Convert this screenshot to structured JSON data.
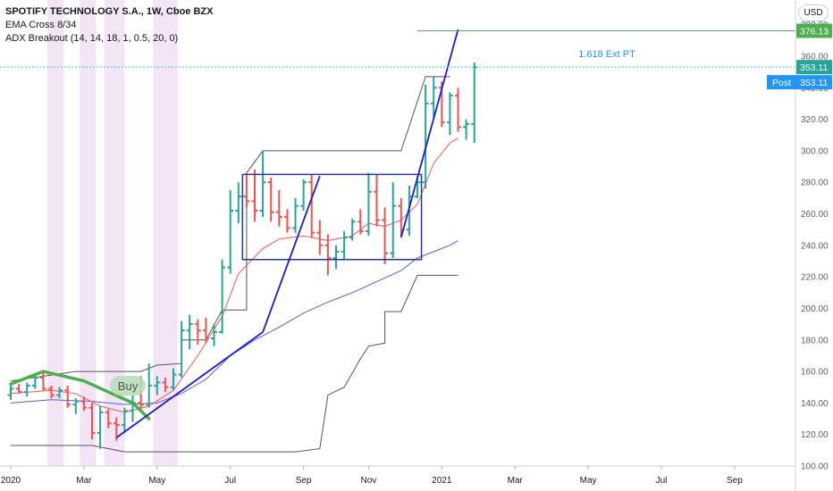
{
  "header": {
    "title": "SPOTIFY TECHNOLOGY S.A., 1W, Cboe BZX",
    "indicator1": "EMA Cross 8/34",
    "indicator2": "ADX Breakout (14, 14, 18, 1, 0.5, 20, 0)",
    "currency": "USD"
  },
  "annotations": {
    "buy": "Buy",
    "target": "1.618 Ext PT",
    "post_label": "Post"
  },
  "price_tags": {
    "target": "376.13",
    "last": "353.11",
    "post": "353.11"
  },
  "colors": {
    "up": "#26a69a",
    "down": "#ef5350",
    "ema_fast": "#ef5350",
    "ema_slow": "#5b5bd6",
    "trendline": "#1a1adb",
    "box": "#1f3a8a",
    "target_line": "#4caf50",
    "last_price": "#26c6da",
    "highlight": "#f3e5f5"
  },
  "chart_data": {
    "type": "ohlc",
    "timeframe": "1W",
    "ylim": [
      100,
      390
    ],
    "y_ticks": [
      100,
      120,
      140,
      160,
      180,
      200,
      220,
      240,
      260,
      280,
      300,
      320,
      340,
      360,
      380
    ],
    "x_ticks": [
      "2020",
      "Mar",
      "May",
      "Jul",
      "Sep",
      "Nov",
      "2021",
      "Mar",
      "May",
      "Jul",
      "Sep"
    ],
    "x_tick_week": [
      0,
      9,
      18,
      27,
      36,
      44,
      53,
      62,
      71,
      80,
      89
    ],
    "grid": false,
    "candles": [
      {
        "o": 145,
        "h": 151,
        "l": 142,
        "c": 149
      },
      {
        "o": 149,
        "h": 152,
        "l": 146,
        "c": 147
      },
      {
        "o": 147,
        "h": 153,
        "l": 144,
        "c": 151
      },
      {
        "o": 151,
        "h": 158,
        "l": 149,
        "c": 156
      },
      {
        "o": 156,
        "h": 160,
        "l": 148,
        "c": 149
      },
      {
        "o": 149,
        "h": 151,
        "l": 143,
        "c": 145
      },
      {
        "o": 145,
        "h": 150,
        "l": 143,
        "c": 148
      },
      {
        "o": 148,
        "h": 151,
        "l": 137,
        "c": 139
      },
      {
        "o": 139,
        "h": 143,
        "l": 133,
        "c": 141
      },
      {
        "o": 141,
        "h": 144,
        "l": 135,
        "c": 137
      },
      {
        "o": 137,
        "h": 140,
        "l": 117,
        "c": 121
      },
      {
        "o": 121,
        "h": 138,
        "l": 111,
        "c": 134
      },
      {
        "o": 134,
        "h": 136,
        "l": 124,
        "c": 127
      },
      {
        "o": 127,
        "h": 131,
        "l": 116,
        "c": 126
      },
      {
        "o": 126,
        "h": 137,
        "l": 121,
        "c": 135
      },
      {
        "o": 135,
        "h": 145,
        "l": 128,
        "c": 140
      },
      {
        "o": 140,
        "h": 157,
        "l": 136,
        "c": 139
      },
      {
        "o": 139,
        "h": 165,
        "l": 137,
        "c": 151
      },
      {
        "o": 151,
        "h": 157,
        "l": 145,
        "c": 153
      },
      {
        "o": 153,
        "h": 156,
        "l": 147,
        "c": 150
      },
      {
        "o": 150,
        "h": 162,
        "l": 148,
        "c": 158
      },
      {
        "o": 158,
        "h": 192,
        "l": 156,
        "c": 186
      },
      {
        "o": 186,
        "h": 196,
        "l": 174,
        "c": 190
      },
      {
        "o": 190,
        "h": 193,
        "l": 177,
        "c": 186
      },
      {
        "o": 186,
        "h": 194,
        "l": 178,
        "c": 181
      },
      {
        "o": 181,
        "h": 190,
        "l": 176,
        "c": 185
      },
      {
        "o": 185,
        "h": 231,
        "l": 184,
        "c": 226
      },
      {
        "o": 226,
        "h": 275,
        "l": 222,
        "c": 262
      },
      {
        "o": 262,
        "h": 280,
        "l": 254,
        "c": 271
      },
      {
        "o": 271,
        "h": 286,
        "l": 264,
        "c": 268
      },
      {
        "o": 268,
        "h": 288,
        "l": 255,
        "c": 262
      },
      {
        "o": 262,
        "h": 300,
        "l": 258,
        "c": 280
      },
      {
        "o": 280,
        "h": 283,
        "l": 255,
        "c": 261
      },
      {
        "o": 261,
        "h": 275,
        "l": 252,
        "c": 258
      },
      {
        "o": 258,
        "h": 263,
        "l": 248,
        "c": 251
      },
      {
        "o": 251,
        "h": 270,
        "l": 248,
        "c": 265
      },
      {
        "o": 265,
        "h": 282,
        "l": 262,
        "c": 280
      },
      {
        "o": 280,
        "h": 285,
        "l": 245,
        "c": 248
      },
      {
        "o": 248,
        "h": 256,
        "l": 234,
        "c": 240
      },
      {
        "o": 240,
        "h": 247,
        "l": 221,
        "c": 232
      },
      {
        "o": 232,
        "h": 240,
        "l": 225,
        "c": 236
      },
      {
        "o": 236,
        "h": 249,
        "l": 231,
        "c": 245
      },
      {
        "o": 245,
        "h": 257,
        "l": 243,
        "c": 255
      },
      {
        "o": 255,
        "h": 263,
        "l": 247,
        "c": 249
      },
      {
        "o": 249,
        "h": 286,
        "l": 246,
        "c": 274
      },
      {
        "o": 274,
        "h": 285,
        "l": 252,
        "c": 256
      },
      {
        "o": 256,
        "h": 264,
        "l": 228,
        "c": 235
      },
      {
        "o": 235,
        "h": 280,
        "l": 232,
        "c": 265
      },
      {
        "o": 265,
        "h": 270,
        "l": 245,
        "c": 250
      },
      {
        "o": 250,
        "h": 278,
        "l": 246,
        "c": 271
      },
      {
        "o": 271,
        "h": 284,
        "l": 270,
        "c": 280
      },
      {
        "o": 280,
        "h": 342,
        "l": 276,
        "c": 330
      },
      {
        "o": 330,
        "h": 347,
        "l": 321,
        "c": 340
      },
      {
        "o": 340,
        "h": 344,
        "l": 315,
        "c": 318
      },
      {
        "o": 318,
        "h": 337,
        "l": 310,
        "c": 335
      },
      {
        "o": 335,
        "h": 340,
        "l": 312,
        "c": 315
      },
      {
        "o": 315,
        "h": 320,
        "l": 307,
        "c": 317
      },
      {
        "o": 317,
        "h": 356,
        "l": 305,
        "c": 353
      }
    ],
    "ema_fast": [
      [
        0,
        146
      ],
      [
        5,
        148
      ],
      [
        8,
        146
      ],
      [
        11,
        138
      ],
      [
        14,
        134
      ],
      [
        17,
        138
      ],
      [
        20,
        148
      ],
      [
        23,
        170
      ],
      [
        26,
        195
      ],
      [
        28,
        222
      ],
      [
        31,
        238
      ],
      [
        33,
        244
      ],
      [
        36,
        246
      ],
      [
        39,
        243
      ],
      [
        42,
        246
      ],
      [
        44,
        254
      ],
      [
        46,
        252
      ],
      [
        48,
        256
      ],
      [
        50,
        266
      ],
      [
        52,
        292
      ],
      [
        54,
        305
      ],
      [
        55,
        308
      ]
    ],
    "ema_slow": [
      [
        0,
        140
      ],
      [
        5,
        142
      ],
      [
        10,
        141
      ],
      [
        14,
        139
      ],
      [
        18,
        140
      ],
      [
        21,
        146
      ],
      [
        24,
        155
      ],
      [
        27,
        170
      ],
      [
        30,
        180
      ],
      [
        33,
        188
      ],
      [
        36,
        197
      ],
      [
        39,
        204
      ],
      [
        42,
        210
      ],
      [
        45,
        217
      ],
      [
        48,
        224
      ],
      [
        50,
        232
      ],
      [
        52,
        236
      ],
      [
        54,
        240
      ],
      [
        55,
        243
      ]
    ],
    "channel_upper": [
      [
        0,
        154
      ],
      [
        8,
        160
      ],
      [
        16,
        160
      ],
      [
        18,
        164
      ],
      [
        21,
        165
      ],
      [
        21,
        180
      ],
      [
        24,
        180
      ],
      [
        26,
        199
      ],
      [
        29,
        199
      ],
      [
        29,
        286
      ],
      [
        31,
        300
      ],
      [
        48,
        300
      ],
      [
        48,
        300
      ],
      [
        51,
        347
      ],
      [
        54,
        347
      ]
    ],
    "channel_lower": [
      [
        0,
        113
      ],
      [
        10,
        113
      ],
      [
        14,
        109
      ],
      [
        16,
        109
      ],
      [
        30,
        109
      ],
      [
        35,
        109
      ],
      [
        38,
        111
      ],
      [
        39,
        145
      ],
      [
        41,
        150
      ],
      [
        43,
        168
      ],
      [
        44,
        176
      ],
      [
        46,
        178
      ],
      [
        46,
        198
      ],
      [
        48,
        198
      ],
      [
        50,
        221
      ],
      [
        55,
        221
      ]
    ],
    "green_trend": [
      [
        0,
        152
      ],
      [
        4,
        160
      ],
      [
        9,
        154
      ],
      [
        15,
        140
      ],
      [
        17,
        130
      ]
    ],
    "trendlines": [
      {
        "from": [
          13,
          118
        ],
        "to": [
          31,
          185
        ]
      },
      {
        "from": [
          31,
          185
        ],
        "to": [
          38,
          284
        ]
      },
      {
        "from": [
          48,
          245
        ],
        "to": [
          55,
          377
        ]
      }
    ],
    "rectangle": {
      "x0": 28.5,
      "x1": 50.5,
      "y0": 231,
      "y1": 285
    },
    "target_price": 376.13,
    "target_from_week": 50,
    "last_price": 353.11,
    "highlight_weeks": [
      [
        4.5,
        6.5
      ],
      [
        8.5,
        10.5
      ],
      [
        11.5,
        14.0
      ],
      [
        17.5,
        20.5
      ]
    ]
  }
}
